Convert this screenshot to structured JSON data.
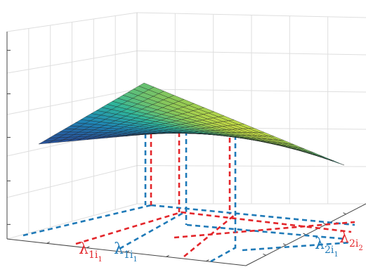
{
  "chart_data": {
    "type": "surface",
    "title": "",
    "xlabel": "",
    "ylabel": "",
    "zlabel": "",
    "grid": true,
    "colormap": "parula",
    "colormap_stops": [
      "#2c3c8f",
      "#1f86b5",
      "#2fb59a",
      "#8dc857",
      "#f2ea37"
    ],
    "surface_edge_color": "#1b1b1b",
    "surface_grid_lines": 21,
    "ridge_heights": [
      0.55,
      0.84,
      0.45
    ],
    "projection_points": [
      {
        "series": "1",
        "color": "#e3262b",
        "height": 0.79,
        "label": "λ1i1"
      },
      {
        "series": "2",
        "color": "#1f7ab8",
        "height": 0.81,
        "label": "λ1i1"
      },
      {
        "series": "1",
        "color": "#e3262b",
        "height": 0.78,
        "label": "λ2i2"
      },
      {
        "series": "2",
        "color": "#1f7ab8",
        "height": 0.72,
        "label": "λ2i1"
      }
    ],
    "axis_labels": [
      {
        "id": "red-left",
        "main": "λ",
        "sub": "1i",
        "subsub": "1",
        "color": "#e3262b"
      },
      {
        "id": "blue-left",
        "main": "λ",
        "sub": "1i",
        "subsub": "1",
        "color": "#1f7ab8"
      },
      {
        "id": "blue-right",
        "main": "λ",
        "sub": "2i",
        "subsub": "1",
        "color": "#1f7ab8"
      },
      {
        "id": "red-right",
        "main": "λ",
        "sub": "2i",
        "subsub": "2",
        "color": "#e3262b"
      }
    ]
  }
}
